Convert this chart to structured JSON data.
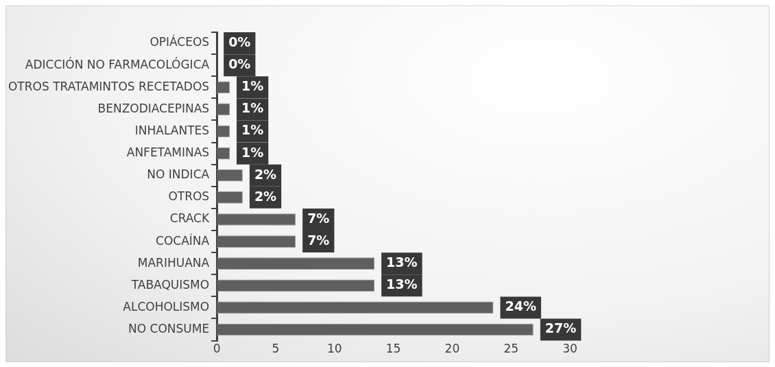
{
  "chart_data": {
    "type": "bar",
    "orientation": "horizontal",
    "categories": [
      "OPIÁCEOS",
      "ADICCIÓN NO FARMACOLÓGICA",
      "OTROS TRATAMINTOS RECETADOS",
      "BENZODIACEPINAS",
      "INHALANTES",
      "ANFETAMINAS",
      "NO INDICA",
      "OTROS",
      "CRACK",
      "COCAÍNA",
      "MARIHUANA",
      "TABAQUISMO",
      "ALCOHOLISMO",
      "NO CONSUME"
    ],
    "values": [
      0,
      0,
      1.1,
      1.1,
      1.1,
      1.1,
      2.2,
      2.2,
      6.7,
      6.7,
      13.4,
      13.4,
      23.5,
      26.9
    ],
    "value_labels": [
      "0%",
      "0%",
      "1%",
      "1%",
      "1%",
      "1%",
      "2%",
      "2%",
      "7%",
      "7%",
      "13%",
      "13%",
      "24%",
      "27%"
    ],
    "color": "#5f5f5f",
    "xlim": [
      0,
      30
    ],
    "xticks": [
      0,
      5,
      10,
      15,
      20,
      25,
      30
    ],
    "grid": false,
    "legend": false
  }
}
